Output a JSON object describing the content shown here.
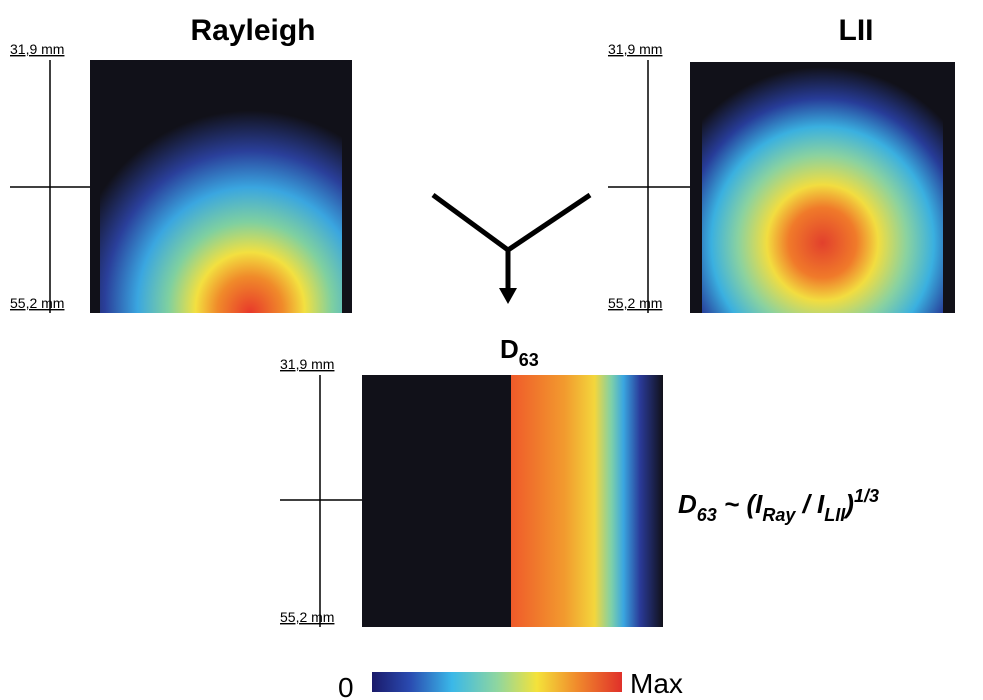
{
  "panels": [
    {
      "title": "Rayleigh",
      "scale_top": "31,9 mm",
      "scale_bottom": "55,2 mm"
    },
    {
      "title": "LII",
      "scale_top": "31,9 mm",
      "scale_bottom": "55,2 mm"
    },
    {
      "title": {
        "main": "D",
        "sub": "63"
      },
      "scale_top": "31,9 mm",
      "scale_bottom": "55,2 mm"
    }
  ],
  "formula": {
    "parts": [
      "D",
      "63",
      " ~ (I",
      "Ray",
      " / I",
      "LII",
      ")",
      "1/3"
    ]
  },
  "colorbar": {
    "min_label": "0",
    "max_label": "Max"
  }
}
